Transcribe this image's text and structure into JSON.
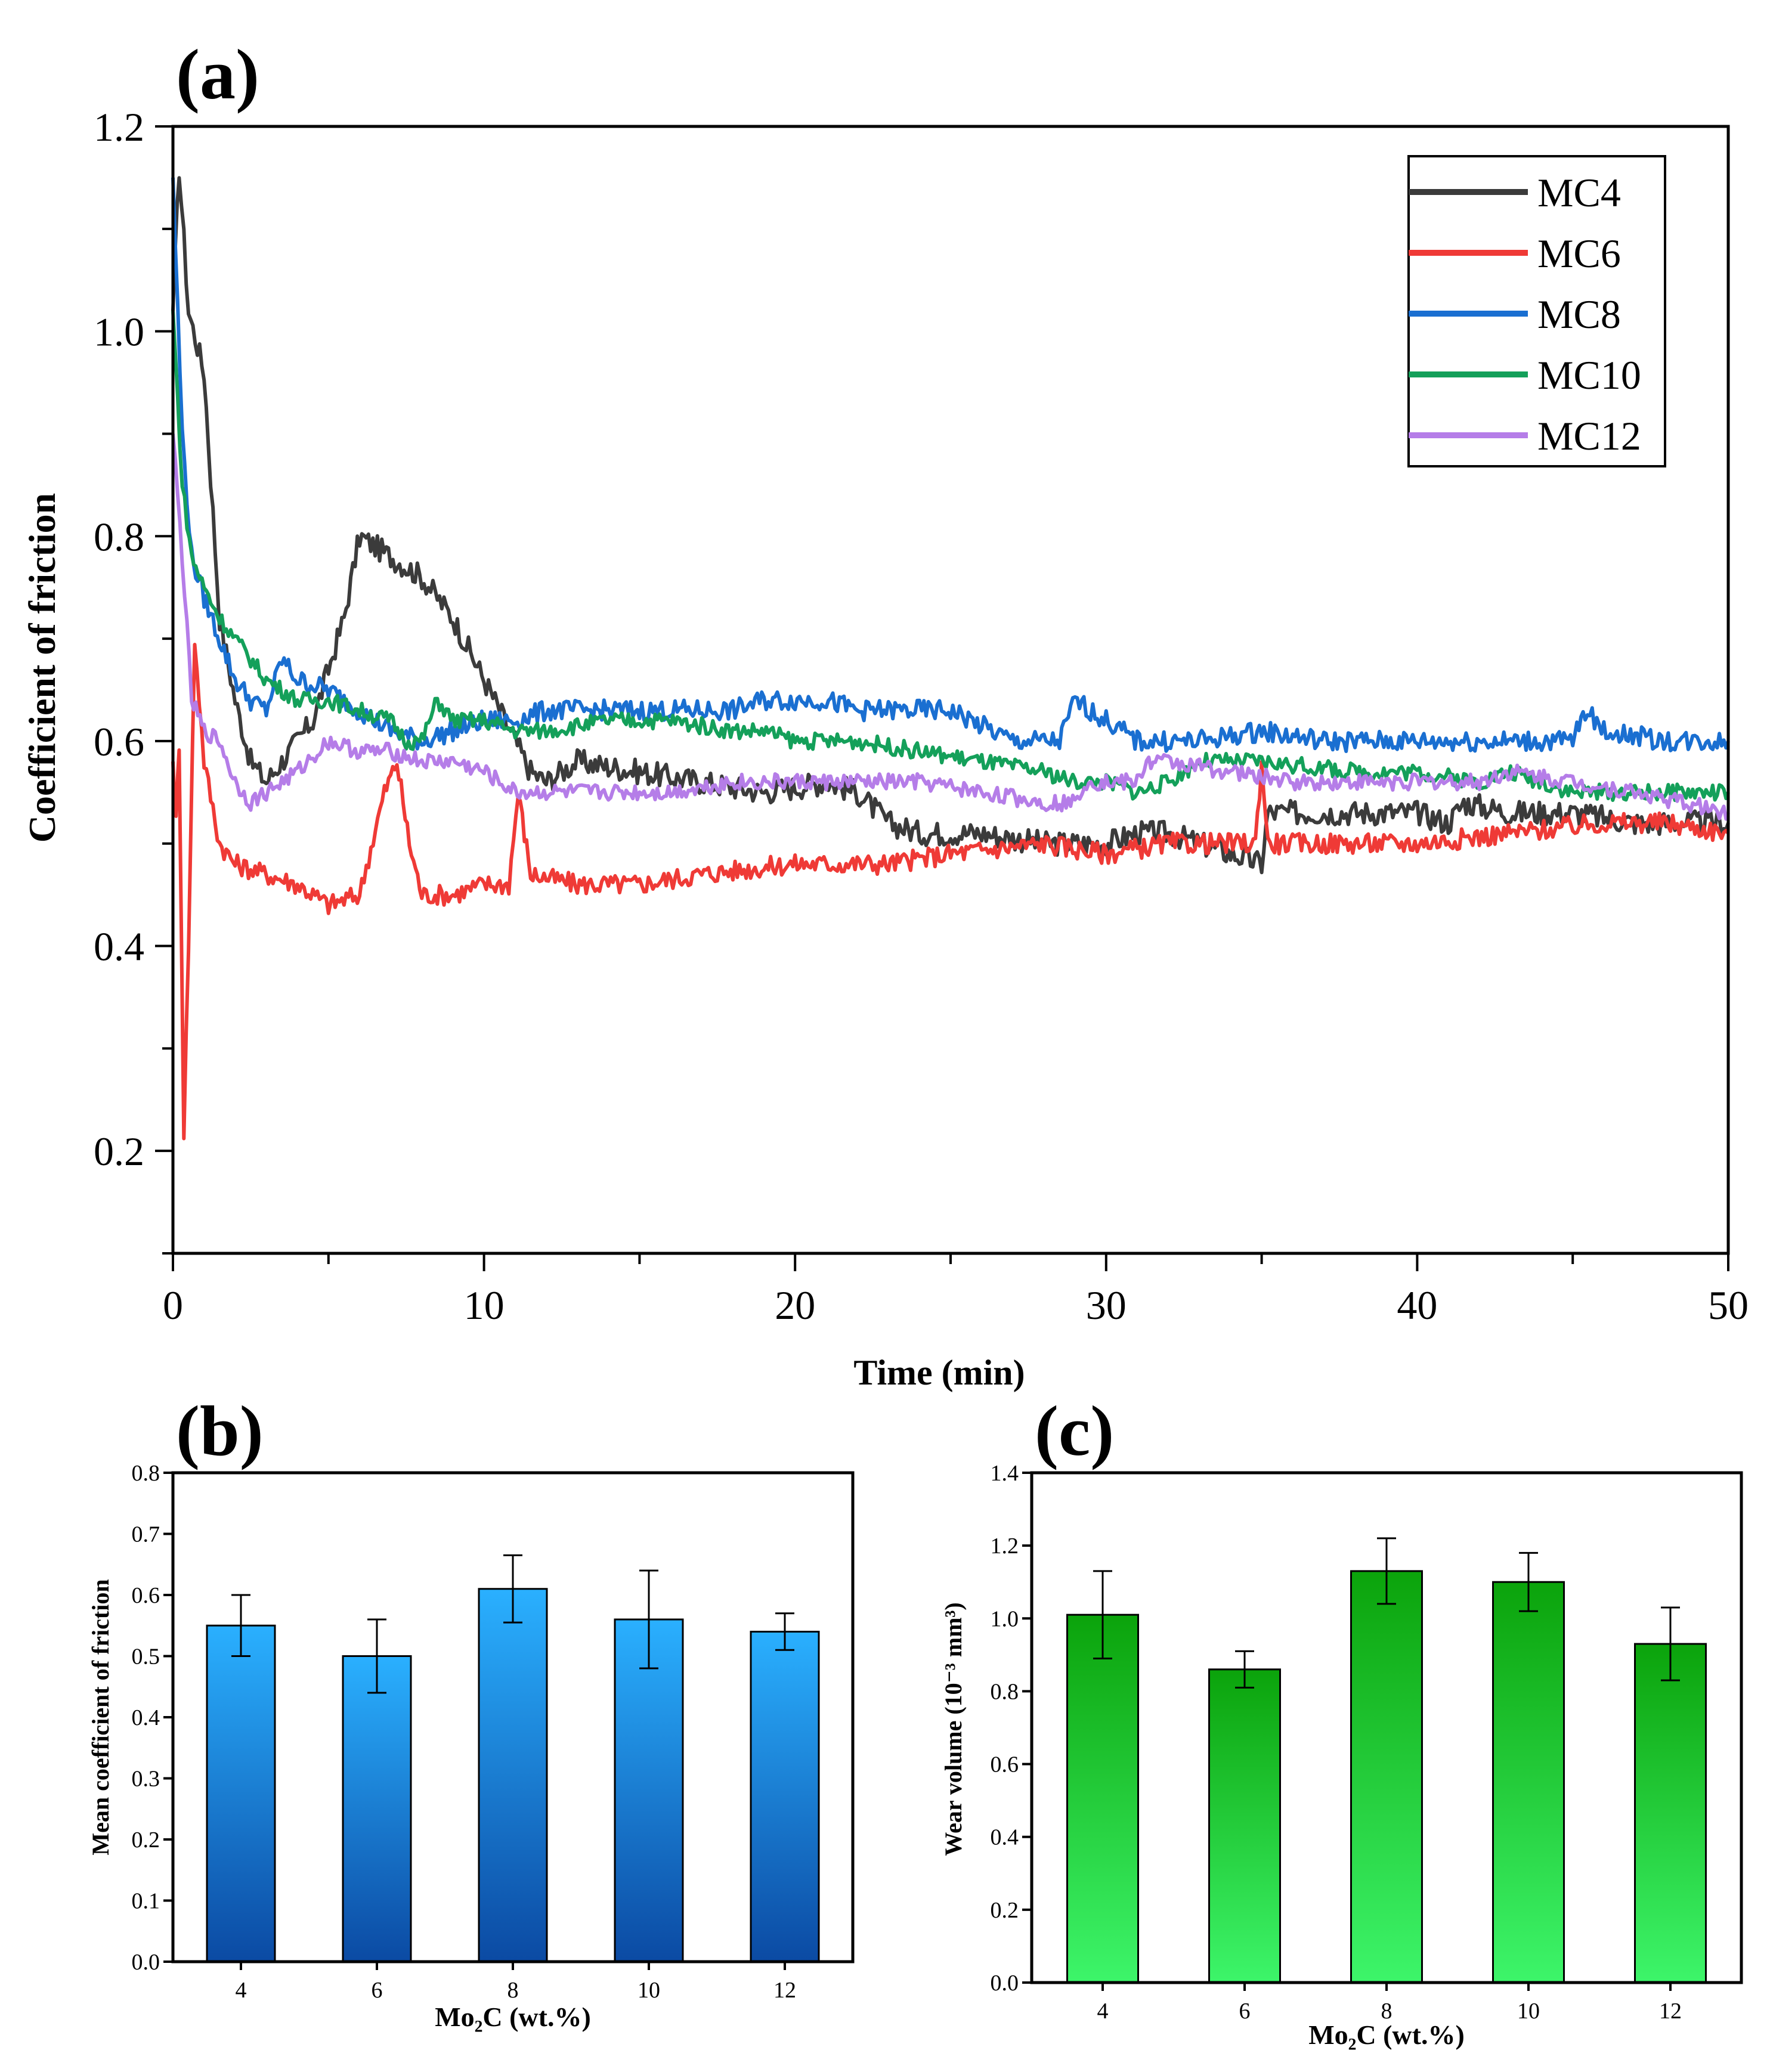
{
  "chart_data": [
    {
      "panel": "(a)",
      "type": "line",
      "xlabel": "Time (min)",
      "ylabel": "Coefficient of friction",
      "xlim": [
        0,
        50
      ],
      "ylim": [
        0.1,
        1.2
      ],
      "xticks": [
        "0",
        "10",
        "20",
        "30",
        "40",
        "50"
      ],
      "yticks": [
        "0.2",
        "0.4",
        "0.6",
        "0.8",
        "1.0",
        "1.2"
      ],
      "legend_position": "top-right",
      "series": [
        {
          "name": "MC4",
          "color": "#3b3b3b",
          "noise": 0.012,
          "points": [
            [
              0,
              1.02
            ],
            [
              0.2,
              1.16
            ],
            [
              0.5,
              1.02
            ],
            [
              1.0,
              0.96
            ],
            [
              1.5,
              0.72
            ],
            [
              2.0,
              0.64
            ],
            [
              2.5,
              0.58
            ],
            [
              3.0,
              0.56
            ],
            [
              3.5,
              0.58
            ],
            [
              4.5,
              0.62
            ],
            [
              5.5,
              0.72
            ],
            [
              6.0,
              0.8
            ],
            [
              7.0,
              0.78
            ],
            [
              8.0,
              0.76
            ],
            [
              9.0,
              0.72
            ],
            [
              10.0,
              0.66
            ],
            [
              11.0,
              0.6
            ],
            [
              11.5,
              0.57
            ],
            [
              12.0,
              0.56
            ],
            [
              13.0,
              0.58
            ],
            [
              15.0,
              0.57
            ],
            [
              17.0,
              0.56
            ],
            [
              19.0,
              0.55
            ],
            [
              21.0,
              0.56
            ],
            [
              22.0,
              0.55
            ],
            [
              23.0,
              0.52
            ],
            [
              24.0,
              0.51
            ],
            [
              26.0,
              0.51
            ],
            [
              28.0,
              0.5
            ],
            [
              30.0,
              0.5
            ],
            [
              31.0,
              0.51
            ],
            [
              32.0,
              0.51
            ],
            [
              34.0,
              0.49
            ],
            [
              35.0,
              0.48
            ],
            [
              35.2,
              0.53
            ],
            [
              36.0,
              0.53
            ],
            [
              38.0,
              0.53
            ],
            [
              40.0,
              0.53
            ],
            [
              41.0,
              0.52
            ],
            [
              41.5,
              0.54
            ],
            [
              43.0,
              0.53
            ],
            [
              45.0,
              0.53
            ],
            [
              47.0,
              0.52
            ],
            [
              50.0,
              0.52
            ]
          ]
        },
        {
          "name": "MC6",
          "color": "#ef3a36",
          "noise": 0.01,
          "points": [
            [
              0,
              0.58
            ],
            [
              0.1,
              0.52
            ],
            [
              0.2,
              0.6
            ],
            [
              0.35,
              0.22
            ],
            [
              0.5,
              0.4
            ],
            [
              0.7,
              0.7
            ],
            [
              1.0,
              0.58
            ],
            [
              1.5,
              0.5
            ],
            [
              2.0,
              0.48
            ],
            [
              3.0,
              0.47
            ],
            [
              4.0,
              0.46
            ],
            [
              5.0,
              0.44
            ],
            [
              6.0,
              0.45
            ],
            [
              6.8,
              0.55
            ],
            [
              7.2,
              0.58
            ],
            [
              7.6,
              0.5
            ],
            [
              8.0,
              0.45
            ],
            [
              9.0,
              0.45
            ],
            [
              10.0,
              0.46
            ],
            [
              10.8,
              0.46
            ],
            [
              11.1,
              0.55
            ],
            [
              11.5,
              0.47
            ],
            [
              13.0,
              0.46
            ],
            [
              15.0,
              0.46
            ],
            [
              17.0,
              0.47
            ],
            [
              20.0,
              0.48
            ],
            [
              23.0,
              0.48
            ],
            [
              25.0,
              0.49
            ],
            [
              28.0,
              0.5
            ],
            [
              30.0,
              0.49
            ],
            [
              32.0,
              0.5
            ],
            [
              34.0,
              0.5
            ],
            [
              34.8,
              0.5
            ],
            [
              35.0,
              0.58
            ],
            [
              35.2,
              0.5
            ],
            [
              37.0,
              0.5
            ],
            [
              40.0,
              0.5
            ],
            [
              43.0,
              0.51
            ],
            [
              46.0,
              0.52
            ],
            [
              48.0,
              0.52
            ],
            [
              50.0,
              0.51
            ]
          ]
        },
        {
          "name": "MC8",
          "color": "#1a6fd1",
          "noise": 0.01,
          "points": [
            [
              0,
              1.15
            ],
            [
              0.3,
              0.9
            ],
            [
              0.6,
              0.78
            ],
            [
              1.0,
              0.74
            ],
            [
              1.5,
              0.7
            ],
            [
              2.0,
              0.66
            ],
            [
              2.5,
              0.64
            ],
            [
              3.0,
              0.63
            ],
            [
              3.5,
              0.68
            ],
            [
              4.0,
              0.66
            ],
            [
              5.0,
              0.65
            ],
            [
              6.0,
              0.63
            ],
            [
              7.0,
              0.61
            ],
            [
              8.0,
              0.6
            ],
            [
              9.0,
              0.61
            ],
            [
              10.0,
              0.62
            ],
            [
              11.0,
              0.62
            ],
            [
              12.0,
              0.63
            ],
            [
              14.0,
              0.63
            ],
            [
              16.0,
              0.63
            ],
            [
              18.0,
              0.63
            ],
            [
              19.0,
              0.64
            ],
            [
              21.0,
              0.64
            ],
            [
              22.0,
              0.63
            ],
            [
              24.0,
              0.63
            ],
            [
              25.0,
              0.63
            ],
            [
              27.0,
              0.6
            ],
            [
              28.5,
              0.6
            ],
            [
              29.0,
              0.64
            ],
            [
              30.0,
              0.62
            ],
            [
              31.0,
              0.6
            ],
            [
              33.0,
              0.6
            ],
            [
              35.0,
              0.61
            ],
            [
              37.0,
              0.6
            ],
            [
              39.0,
              0.6
            ],
            [
              41.0,
              0.6
            ],
            [
              43.0,
              0.6
            ],
            [
              45.0,
              0.6
            ],
            [
              45.4,
              0.63
            ],
            [
              46.0,
              0.61
            ],
            [
              48.0,
              0.6
            ],
            [
              50.0,
              0.6
            ]
          ]
        },
        {
          "name": "MC10",
          "color": "#14a05a",
          "noise": 0.008,
          "points": [
            [
              0,
              1.02
            ],
            [
              0.3,
              0.85
            ],
            [
              0.6,
              0.78
            ],
            [
              1.0,
              0.75
            ],
            [
              1.5,
              0.72
            ],
            [
              2.0,
              0.7
            ],
            [
              2.5,
              0.68
            ],
            [
              3.0,
              0.66
            ],
            [
              4.0,
              0.64
            ],
            [
              5.0,
              0.64
            ],
            [
              6.0,
              0.63
            ],
            [
              7.0,
              0.62
            ],
            [
              7.5,
              0.6
            ],
            [
              8.0,
              0.6
            ],
            [
              8.5,
              0.64
            ],
            [
              9.0,
              0.62
            ],
            [
              10.0,
              0.62
            ],
            [
              11.0,
              0.61
            ],
            [
              12.0,
              0.61
            ],
            [
              14.0,
              0.62
            ],
            [
              16.0,
              0.62
            ],
            [
              18.0,
              0.61
            ],
            [
              19.0,
              0.61
            ],
            [
              20.0,
              0.6
            ],
            [
              22.0,
              0.6
            ],
            [
              24.0,
              0.59
            ],
            [
              26.0,
              0.58
            ],
            [
              28.0,
              0.57
            ],
            [
              29.0,
              0.56
            ],
            [
              30.0,
              0.56
            ],
            [
              31.0,
              0.55
            ],
            [
              32.0,
              0.56
            ],
            [
              33.0,
              0.58
            ],
            [
              35.0,
              0.58
            ],
            [
              38.0,
              0.57
            ],
            [
              40.0,
              0.57
            ],
            [
              42.0,
              0.56
            ],
            [
              43.0,
              0.57
            ],
            [
              45.0,
              0.55
            ],
            [
              47.0,
              0.55
            ],
            [
              50.0,
              0.55
            ]
          ]
        },
        {
          "name": "MC12",
          "color": "#b57de8",
          "noise": 0.008,
          "points": [
            [
              0,
              0.9
            ],
            [
              0.3,
              0.78
            ],
            [
              0.6,
              0.64
            ],
            [
              1.0,
              0.61
            ],
            [
              1.5,
              0.6
            ],
            [
              2.0,
              0.56
            ],
            [
              2.5,
              0.54
            ],
            [
              3.0,
              0.55
            ],
            [
              3.5,
              0.56
            ],
            [
              4.0,
              0.57
            ],
            [
              5.0,
              0.6
            ],
            [
              6.0,
              0.59
            ],
            [
              7.0,
              0.59
            ],
            [
              8.0,
              0.58
            ],
            [
              9.0,
              0.58
            ],
            [
              10.0,
              0.57
            ],
            [
              11.0,
              0.55
            ],
            [
              12.0,
              0.55
            ],
            [
              14.0,
              0.55
            ],
            [
              16.0,
              0.55
            ],
            [
              18.0,
              0.56
            ],
            [
              20.0,
              0.56
            ],
            [
              22.0,
              0.56
            ],
            [
              24.0,
              0.56
            ],
            [
              26.0,
              0.55
            ],
            [
              28.0,
              0.54
            ],
            [
              29.0,
              0.54
            ],
            [
              29.3,
              0.56
            ],
            [
              30.0,
              0.56
            ],
            [
              31.0,
              0.56
            ],
            [
              31.3,
              0.58
            ],
            [
              32.0,
              0.58
            ],
            [
              34.0,
              0.57
            ],
            [
              36.0,
              0.56
            ],
            [
              38.0,
              0.56
            ],
            [
              40.0,
              0.56
            ],
            [
              42.0,
              0.56
            ],
            [
              43.0,
              0.57
            ],
            [
              45.0,
              0.56
            ],
            [
              47.0,
              0.55
            ],
            [
              50.0,
              0.53
            ]
          ]
        }
      ]
    },
    {
      "panel": "(b)",
      "type": "bar",
      "xlabel": "Mo₂C (wt.%)",
      "ylabel": "Mean coefficient of friction",
      "categories": [
        "4",
        "6",
        "8",
        "10",
        "12"
      ],
      "values": [
        0.55,
        0.5,
        0.61,
        0.56,
        0.54
      ],
      "errors": [
        0.05,
        0.06,
        0.055,
        0.08,
        0.03
      ],
      "ylim": [
        0,
        0.8
      ],
      "yticks": [
        "0.0",
        "0.1",
        "0.2",
        "0.3",
        "0.4",
        "0.5",
        "0.6",
        "0.7",
        "0.8"
      ],
      "bar_color_top": "#2ab0ff",
      "bar_color_bottom": "#0b4aa3"
    },
    {
      "panel": "(c)",
      "type": "bar",
      "xlabel": "Mo₂C (wt.%)",
      "ylabel": "Wear volume (10⁻³ mm³)",
      "categories": [
        "4",
        "6",
        "8",
        "10",
        "12"
      ],
      "values": [
        1.01,
        0.86,
        1.13,
        1.1,
        0.93
      ],
      "errors": [
        0.12,
        0.05,
        0.09,
        0.08,
        0.1
      ],
      "ylim": [
        0,
        1.4
      ],
      "yticks": [
        "0.0",
        "0.2",
        "0.4",
        "0.6",
        "0.8",
        "1.0",
        "1.2",
        "1.4"
      ],
      "bar_color_top": "#0ba30b",
      "bar_color_bottom": "#3df56a"
    }
  ]
}
